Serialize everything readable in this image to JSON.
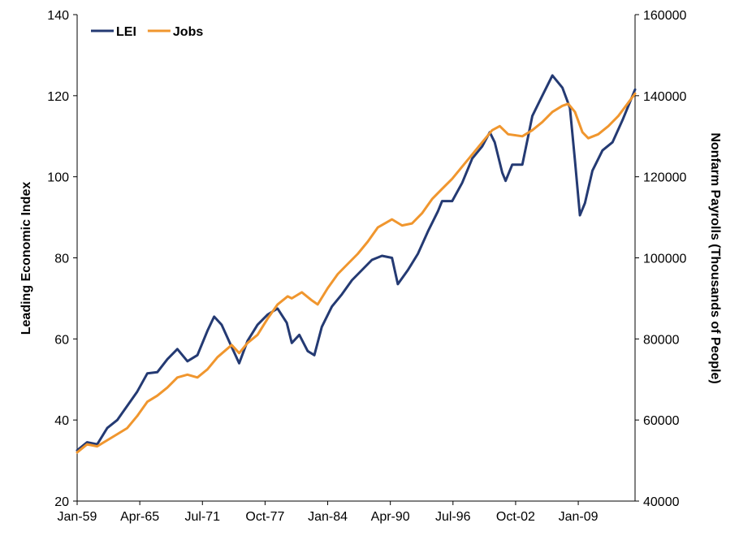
{
  "chart_data": {
    "type": "line",
    "title": "",
    "legend_position": "top-left",
    "grid": false,
    "colors": {
      "LEI": "#243a73",
      "Jobs": "#f0962e"
    },
    "x_ticks": [
      "Jan-59",
      "Apr-65",
      "Jul-71",
      "Oct-77",
      "Jan-84",
      "Apr-90",
      "Jul-96",
      "Oct-02",
      "Jan-09"
    ],
    "x_range": [
      "1959-01",
      "2014-09"
    ],
    "y_left": {
      "label": "Leading Economic Index",
      "min": 20,
      "max": 140,
      "ticks": [
        "20",
        "40",
        "60",
        "80",
        "100",
        "120",
        "140"
      ]
    },
    "y_right": {
      "label": "Nonfarm Payrolls (Thousands of People)",
      "min": 40000,
      "max": 160000,
      "ticks": [
        "40000",
        "60000",
        "80000",
        "100000",
        "120000",
        "140000",
        "160000"
      ]
    },
    "series": [
      {
        "name": "LEI",
        "axis": "left",
        "points": [
          [
            "1959-01",
            32.5
          ],
          [
            "1960-01",
            34.5
          ],
          [
            "1961-01",
            34.0
          ],
          [
            "1962-01",
            38.0
          ],
          [
            "1963-01",
            40.0
          ],
          [
            "1964-01",
            43.5
          ],
          [
            "1965-01",
            47.0
          ],
          [
            "1966-01",
            51.5
          ],
          [
            "1967-01",
            51.8
          ],
          [
            "1968-01",
            55.0
          ],
          [
            "1969-01",
            57.5
          ],
          [
            "1970-01",
            54.5
          ],
          [
            "1971-01",
            56.0
          ],
          [
            "1972-01",
            62.0
          ],
          [
            "1972-09",
            65.5
          ],
          [
            "1973-06",
            63.5
          ],
          [
            "1974-06",
            58.0
          ],
          [
            "1975-03",
            54.0
          ],
          [
            "1976-01",
            59.5
          ],
          [
            "1977-01",
            63.5
          ],
          [
            "1978-01",
            66.0
          ],
          [
            "1979-01",
            67.5
          ],
          [
            "1979-12",
            64.0
          ],
          [
            "1980-06",
            59.0
          ],
          [
            "1981-03",
            61.0
          ],
          [
            "1982-01",
            57.0
          ],
          [
            "1982-09",
            56.0
          ],
          [
            "1983-06",
            63.0
          ],
          [
            "1984-06",
            68.0
          ],
          [
            "1985-06",
            71.0
          ],
          [
            "1986-06",
            74.5
          ],
          [
            "1987-06",
            77.0
          ],
          [
            "1988-06",
            79.5
          ],
          [
            "1989-06",
            80.5
          ],
          [
            "1990-06",
            80.0
          ],
          [
            "1991-01",
            73.5
          ],
          [
            "1992-01",
            77.0
          ],
          [
            "1993-01",
            81.0
          ],
          [
            "1994-01",
            86.5
          ],
          [
            "1995-01",
            91.5
          ],
          [
            "1995-06",
            94.0
          ],
          [
            "1996-06",
            94.0
          ],
          [
            "1997-06",
            98.5
          ],
          [
            "1998-06",
            104.5
          ],
          [
            "1999-06",
            107.5
          ],
          [
            "2000-03",
            111.0
          ],
          [
            "2000-09",
            108.5
          ],
          [
            "2001-06",
            101.0
          ],
          [
            "2001-10",
            99.0
          ],
          [
            "2002-06",
            103.0
          ],
          [
            "2003-06",
            103.0
          ],
          [
            "2004-01",
            110.0
          ],
          [
            "2004-06",
            115.0
          ],
          [
            "2005-06",
            120.0
          ],
          [
            "2006-06",
            125.0
          ],
          [
            "2007-06",
            122.0
          ],
          [
            "2008-03",
            117.0
          ],
          [
            "2008-09",
            104.0
          ],
          [
            "2009-03",
            90.5
          ],
          [
            "2009-09",
            93.5
          ],
          [
            "2010-06",
            101.5
          ],
          [
            "2011-06",
            106.5
          ],
          [
            "2012-06",
            108.5
          ],
          [
            "2013-06",
            114.0
          ],
          [
            "2014-09",
            121.5
          ]
        ]
      },
      {
        "name": "Jobs",
        "axis": "right",
        "points": [
          [
            "1959-01",
            52000
          ],
          [
            "1960-01",
            54000
          ],
          [
            "1961-01",
            53500
          ],
          [
            "1962-01",
            55000
          ],
          [
            "1963-01",
            56500
          ],
          [
            "1964-01",
            58000
          ],
          [
            "1965-01",
            61000
          ],
          [
            "1966-01",
            64500
          ],
          [
            "1967-01",
            66000
          ],
          [
            "1968-01",
            68000
          ],
          [
            "1969-01",
            70500
          ],
          [
            "1970-01",
            71200
          ],
          [
            "1971-01",
            70500
          ],
          [
            "1972-01",
            72500
          ],
          [
            "1973-01",
            75500
          ],
          [
            "1974-06",
            78500
          ],
          [
            "1975-03",
            76500
          ],
          [
            "1976-01",
            79000
          ],
          [
            "1977-01",
            81000
          ],
          [
            "1978-01",
            85000
          ],
          [
            "1979-01",
            88500
          ],
          [
            "1980-01",
            90500
          ],
          [
            "1980-06",
            90000
          ],
          [
            "1981-06",
            91500
          ],
          [
            "1982-06",
            89500
          ],
          [
            "1983-01",
            88500
          ],
          [
            "1984-01",
            92500
          ],
          [
            "1985-01",
            96000
          ],
          [
            "1986-01",
            98500
          ],
          [
            "1987-01",
            101000
          ],
          [
            "1988-01",
            104000
          ],
          [
            "1989-01",
            107500
          ],
          [
            "1990-06",
            109500
          ],
          [
            "1991-06",
            108000
          ],
          [
            "1992-06",
            108500
          ],
          [
            "1993-06",
            111000
          ],
          [
            "1994-06",
            114500
          ],
          [
            "1995-06",
            117000
          ],
          [
            "1996-06",
            119500
          ],
          [
            "1997-06",
            122500
          ],
          [
            "1998-06",
            125500
          ],
          [
            "1999-06",
            128500
          ],
          [
            "2000-06",
            131500
          ],
          [
            "2001-03",
            132500
          ],
          [
            "2002-01",
            130500
          ],
          [
            "2003-06",
            130000
          ],
          [
            "2004-06",
            131500
          ],
          [
            "2005-06",
            133500
          ],
          [
            "2006-06",
            136000
          ],
          [
            "2007-06",
            137500
          ],
          [
            "2008-01",
            138000
          ],
          [
            "2008-09",
            136000
          ],
          [
            "2009-06",
            131000
          ],
          [
            "2010-01",
            129500
          ],
          [
            "2011-01",
            130500
          ],
          [
            "2012-01",
            132500
          ],
          [
            "2013-01",
            135000
          ],
          [
            "2014-09",
            140500
          ]
        ]
      }
    ]
  }
}
